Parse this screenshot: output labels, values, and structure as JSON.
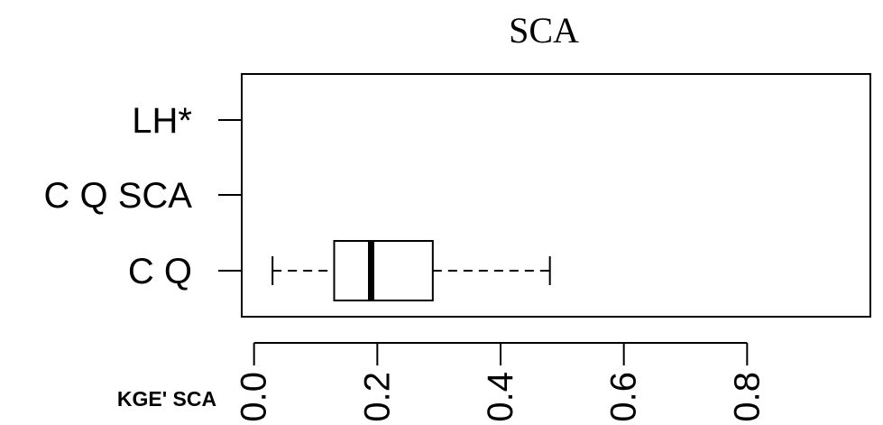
{
  "chart_data": {
    "type": "boxplot",
    "orientation": "horizontal",
    "title": "SCA",
    "xlabel": "KGE' SCA",
    "ylabel": "",
    "categories": [
      "C Q",
      "C Q SCA",
      "LH*"
    ],
    "xlim": [
      -0.02,
      1.0
    ],
    "x_ticks": [
      "0.0",
      "0.2",
      "0.4",
      "0.6",
      "0.8"
    ],
    "tick_values": [
      0.0,
      0.2,
      0.4,
      0.6,
      0.8
    ],
    "series": [
      {
        "category": "C Q",
        "min": 0.03,
        "q1": 0.13,
        "median": 0.19,
        "q3": 0.29,
        "max": 0.48
      },
      {
        "category": "C Q SCA"
      },
      {
        "category": "LH*"
      }
    ],
    "grid": false,
    "legend": "none"
  }
}
